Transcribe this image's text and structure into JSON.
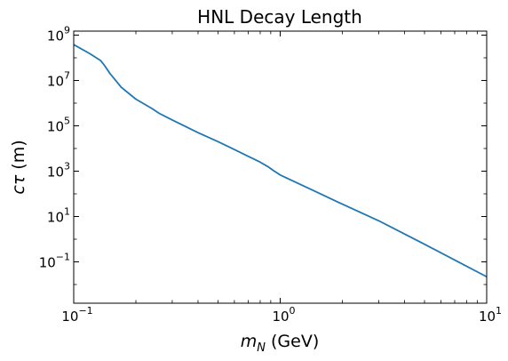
{
  "chart_data": {
    "type": "line",
    "title": "HNL Decay Length",
    "xlabel": {
      "main": "m",
      "subscript": "N",
      "unit": " (GeV)"
    },
    "ylabel": {
      "main": "cτ",
      "unit": " (m)"
    },
    "xscale": "log",
    "yscale": "log",
    "xlim": [
      0.1,
      10
    ],
    "ylim": [
      0.0015,
      1500000000
    ],
    "grid": false,
    "x_ticks": [
      {
        "value": 0.1,
        "base": "10",
        "exp": "−1"
      },
      {
        "value": 1,
        "base": "10",
        "exp": "0"
      },
      {
        "value": 10,
        "base": "10",
        "exp": "1"
      }
    ],
    "y_ticks": [
      {
        "value": 0.1,
        "base": "10",
        "exp": "−1"
      },
      {
        "value": 10,
        "base": "10",
        "exp": "1"
      },
      {
        "value": 1000,
        "base": "10",
        "exp": "3"
      },
      {
        "value": 100000,
        "base": "10",
        "exp": "5"
      },
      {
        "value": 10000000,
        "base": "10",
        "exp": "7"
      },
      {
        "value": 1000000000,
        "base": "10",
        "exp": "9"
      }
    ],
    "series": [
      {
        "name": "HNL decay length",
        "color": "#1f77b4",
        "x": [
          0.1,
          0.12,
          0.135,
          0.14,
          0.15,
          0.17,
          0.2,
          0.24,
          0.26,
          0.3,
          0.4,
          0.5,
          0.6,
          0.7,
          0.8,
          0.87,
          0.93,
          1.0,
          1.5,
          2.0,
          3.0,
          5.0,
          7.0,
          10.0
        ],
        "y": [
          380000000,
          150000000,
          75000000,
          50000000,
          20000000,
          5000000,
          1500000,
          570000,
          350000,
          180000,
          50000,
          20000,
          9000,
          4500,
          2500,
          1600,
          1050,
          680,
          120,
          35,
          6.5,
          0.6,
          0.12,
          0.022
        ]
      }
    ]
  }
}
